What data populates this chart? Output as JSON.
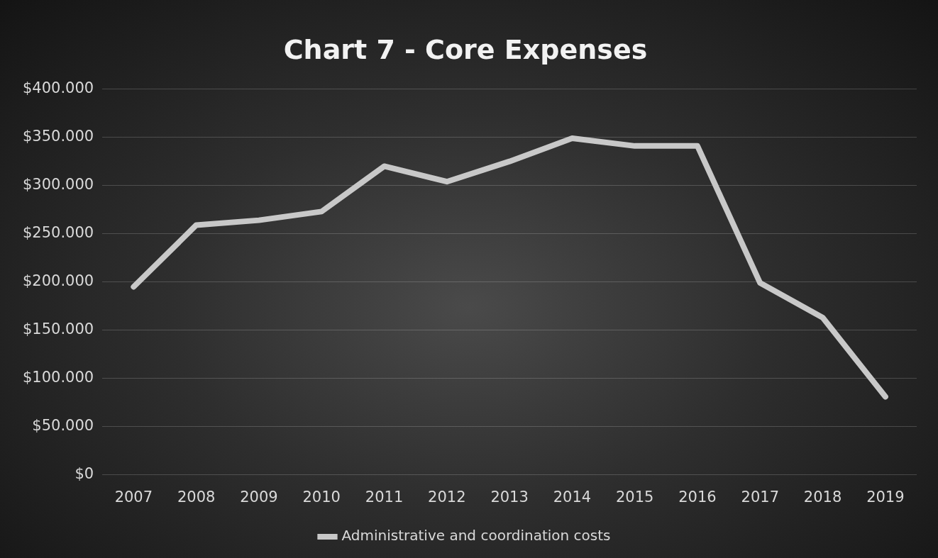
{
  "chart_data": {
    "type": "line",
    "title": "Chart 7 - Core Expenses",
    "categories": [
      "2007",
      "2008",
      "2009",
      "2010",
      "2011",
      "2012",
      "2013",
      "2014",
      "2015",
      "2016",
      "2017",
      "2018",
      "2019"
    ],
    "series": [
      {
        "name": "Administrative and coordination costs",
        "color": "#c8c8c8",
        "values": [
          195000,
          259000,
          264000,
          273000,
          320000,
          304000,
          325000,
          349000,
          341000,
          341000,
          199000,
          163000,
          81000
        ]
      }
    ],
    "ylim": [
      0,
      400000
    ],
    "yticks": [
      {
        "value": 0,
        "label": "$0"
      },
      {
        "value": 50000,
        "label": "$50.000"
      },
      {
        "value": 100000,
        "label": "$100.000"
      },
      {
        "value": 150000,
        "label": "$150.000"
      },
      {
        "value": 200000,
        "label": "$200.000"
      },
      {
        "value": 250000,
        "label": "$250.000"
      },
      {
        "value": 300000,
        "label": "$300.000"
      },
      {
        "value": 350000,
        "label": "$350.000"
      },
      {
        "value": 400000,
        "label": "$400.000"
      }
    ],
    "grid": "y",
    "legend": "bottom",
    "marker": "none",
    "line_style": "solid"
  }
}
